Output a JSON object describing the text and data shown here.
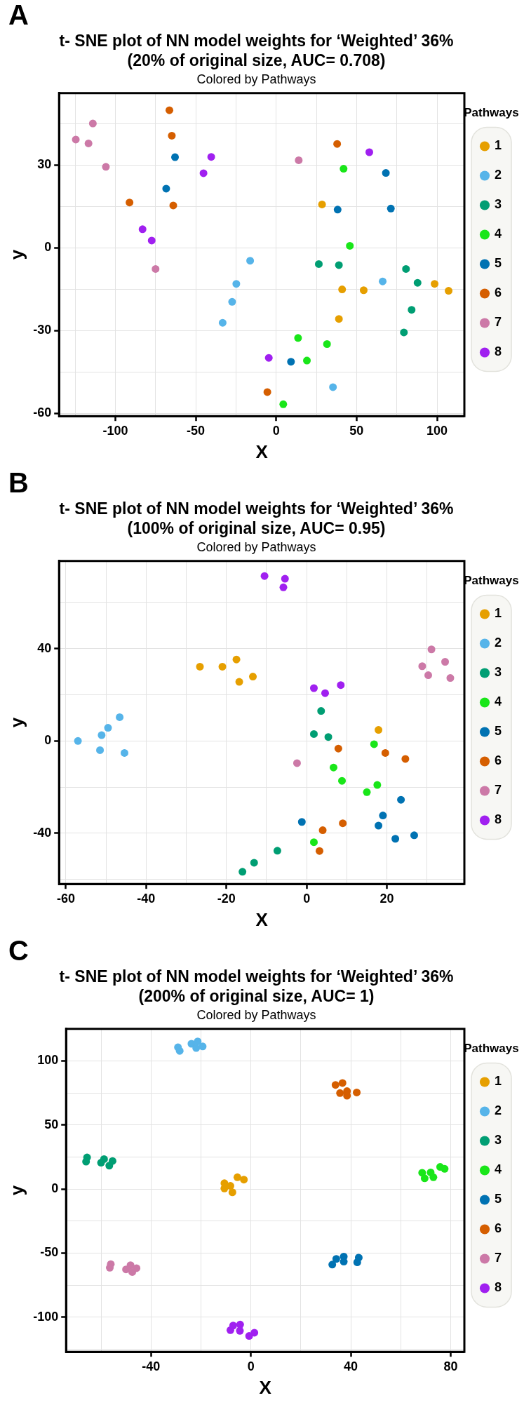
{
  "chart_data": [
    {
      "type": "scatter",
      "title": "t- SNE plot of NN model weights for ‘Weighted’ 36% (20% of original size, AUC= 0.708)",
      "subtitle": "Colored by Pathways",
      "xlabel": "X",
      "ylabel": "y",
      "legend_title": "Pathways",
      "annotations": [
        "A"
      ],
      "legend": "right",
      "grid": true,
      "marker": "circle",
      "xlim": [
        -135,
        117
      ],
      "ylim": [
        -61,
        56
      ],
      "xticks": [
        {
          "value": -125,
          "label": null
        },
        -100,
        {
          "value": -75,
          "label": null
        },
        -50,
        {
          "value": -25,
          "label": null
        },
        0,
        {
          "value": 25,
          "label": null
        },
        50,
        {
          "value": 75,
          "label": null
        },
        100
      ],
      "yticks": [
        -60,
        {
          "value": -45,
          "label": null
        },
        -30,
        {
          "value": -15,
          "label": null
        },
        0,
        {
          "value": 15,
          "label": null
        },
        30,
        {
          "value": 45,
          "label": null
        }
      ],
      "series": [
        {
          "name": "1",
          "color": "#e69f00",
          "x": [
            28.5,
            41,
            54.4,
            39,
            98.5,
            107.2
          ],
          "values": [
            15.7,
            -15.1,
            -15.4,
            -25.8,
            -13.1,
            -15.6
          ]
        },
        {
          "name": "2",
          "color": "#56b4e9",
          "x": [
            -16.2,
            -24.8,
            -27.4,
            -33.3,
            66.2,
            35.3
          ],
          "values": [
            -4.7,
            -13.1,
            -19.6,
            -27.2,
            -12.2,
            -50.5
          ]
        },
        {
          "name": "3",
          "color": "#009e73",
          "x": [
            26.5,
            39,
            80.7,
            87.9,
            84.2,
            79.4
          ],
          "values": [
            -5.9,
            -6.3,
            -7.7,
            -12.7,
            -22.5,
            -30.7
          ]
        },
        {
          "name": "4",
          "color": "#19e619",
          "x": [
            41.9,
            45.8,
            13.6,
            31.6,
            19.1,
            4.4
          ],
          "values": [
            28.6,
            0.7,
            -32.7,
            -34.9,
            -40.9,
            -56.7
          ]
        },
        {
          "name": "5",
          "color": "#0072b2",
          "x": [
            -62.9,
            -68.4,
            68.2,
            38.2,
            71.3,
            9.2
          ],
          "values": [
            32.8,
            21.4,
            27.1,
            13.8,
            14.2,
            -41.3
          ]
        },
        {
          "name": "6",
          "color": "#d55e00",
          "x": [
            -66.4,
            -64.9,
            -91.2,
            -64,
            37.9,
            -5.5
          ],
          "values": [
            49.8,
            40.6,
            16.4,
            15.3,
            37.6,
            -52.3
          ]
        },
        {
          "name": "7",
          "color": "#cc79a7",
          "x": [
            -124.6,
            -114,
            -116.7,
            -105.9,
            -75,
            14
          ],
          "values": [
            39.2,
            45,
            37.8,
            29.3,
            -7.7,
            31.7
          ]
        },
        {
          "name": "8",
          "color": "#a020f0",
          "x": [
            -40.4,
            -45.2,
            -83.1,
            -77.4,
            57.9,
            -4.6
          ],
          "values": [
            32.9,
            27,
            6.7,
            2.6,
            34.6,
            -39.9
          ]
        }
      ]
    },
    {
      "type": "scatter",
      "title": "t- SNE plot of NN model weights for ‘Weighted’ 36% (100% of original size, AUC= 0.95)",
      "subtitle": "Colored by Pathways",
      "xlabel": "X",
      "ylabel": "y",
      "legend_title": "Pathways",
      "annotations": [
        "B"
      ],
      "legend": "right",
      "grid": true,
      "marker": "circle",
      "xlim": [
        -61.7,
        39.3
      ],
      "ylim": [
        -62,
        78
      ],
      "xticks": [
        -60,
        {
          "value": -50,
          "label": null
        },
        -40,
        {
          "value": -30,
          "label": null
        },
        -20,
        {
          "value": -10,
          "label": null
        },
        0,
        {
          "value": 10,
          "label": null
        },
        20,
        {
          "value": 30,
          "label": null
        }
      ],
      "yticks": [
        {
          "value": -60,
          "label": null
        },
        -40,
        {
          "value": -20,
          "label": null
        },
        0,
        {
          "value": 20,
          "label": null
        },
        40,
        {
          "value": 60,
          "label": null
        }
      ],
      "series": [
        {
          "name": "1",
          "color": "#e69f00",
          "x": [
            -26.6,
            -21,
            -17.5,
            -16.8,
            -13.4,
            17.9
          ],
          "values": [
            32.2,
            32.2,
            35.3,
            25.6,
            27.9,
            4.8
          ]
        },
        {
          "name": "2",
          "color": "#56b4e9",
          "x": [
            -57,
            -51.1,
            -49.5,
            -46.6,
            -51.5,
            -45.4
          ],
          "values": [
            0,
            2.5,
            5.7,
            10.3,
            -4,
            -5.2
          ]
        },
        {
          "name": "3",
          "color": "#009e73",
          "x": [
            3.6,
            1.8,
            5.4,
            -7.3,
            -13.1,
            -16
          ],
          "values": [
            13,
            3,
            1.7,
            -47.6,
            -52.8,
            -56.7
          ]
        },
        {
          "name": "4",
          "color": "#19e619",
          "x": [
            6.7,
            8.8,
            16.8,
            17.6,
            15,
            1.8
          ],
          "values": [
            -11.5,
            -17.3,
            -1.4,
            -19.1,
            -22.2,
            -43.9
          ]
        },
        {
          "name": "5",
          "color": "#0072b2",
          "x": [
            -1.2,
            23.5,
            19,
            17.9,
            22.1,
            26.8
          ],
          "values": [
            -35.1,
            -25.5,
            -32.3,
            -36.7,
            -42.4,
            -40.9
          ]
        },
        {
          "name": "6",
          "color": "#d55e00",
          "x": [
            7.9,
            19.6,
            24.6,
            4,
            9,
            3.2
          ],
          "values": [
            -3.3,
            -5.2,
            -7.8,
            -38.7,
            -35.7,
            -47.7
          ]
        },
        {
          "name": "7",
          "color": "#cc79a7",
          "x": [
            -2.4,
            28.8,
            31.1,
            30.3,
            34.5,
            35.8
          ],
          "values": [
            -9.6,
            32.4,
            39.7,
            28.5,
            34.3,
            27.3
          ]
        },
        {
          "name": "8",
          "color": "#a020f0",
          "x": [
            -10.5,
            -5.4,
            -5.8,
            1.8,
            4.6,
            8.5
          ],
          "values": [
            71.5,
            70.3,
            66.6,
            22.9,
            20.7,
            24.2
          ]
        }
      ]
    },
    {
      "type": "scatter",
      "title": "t- SNE plot of NN model weights for ‘Weighted’ 36% (200% of original size, AUC= 1)",
      "subtitle": "Colored by Pathways",
      "xlabel": "X",
      "ylabel": "y",
      "legend_title": "Pathways",
      "annotations": [
        "C"
      ],
      "legend": "right",
      "grid": true,
      "marker": "circle",
      "xlim": [
        -74,
        85.5
      ],
      "ylim": [
        -127,
        125
      ],
      "xticks": [
        {
          "value": -60,
          "label": null
        },
        -40,
        {
          "value": -20,
          "label": null
        },
        0,
        {
          "value": 20,
          "label": null
        },
        40,
        {
          "value": 60,
          "label": null
        },
        80
      ],
      "yticks": [
        {
          "value": -125,
          "label": null
        },
        -100,
        {
          "value": -75,
          "label": null
        },
        -50,
        {
          "value": -25,
          "label": null
        },
        0,
        {
          "value": 25,
          "label": null
        },
        50,
        {
          "value": 75,
          "label": null
        },
        100,
        {
          "value": 125,
          "label": null
        }
      ],
      "series": [
        {
          "name": "1",
          "color": "#e69f00",
          "x": [
            -10.6,
            -10.6,
            -8.2,
            -7.4,
            -5.4,
            -2.8
          ],
          "values": [
            4.6,
            0.5,
            2.5,
            -2.5,
            9.2,
            7.4
          ]
        },
        {
          "name": "2",
          "color": "#56b4e9",
          "x": [
            -29.2,
            -28.5,
            -23.8,
            -21.3,
            -21.9,
            -19.3
          ],
          "values": [
            110.6,
            107.8,
            113.4,
            115.2,
            110.1,
            111.3
          ]
        },
        {
          "name": "3",
          "color": "#009e73",
          "x": [
            -65.6,
            -66,
            -58.8,
            -60,
            -55.4,
            -56.7
          ],
          "values": [
            24.7,
            21.4,
            23.4,
            20.6,
            21.9,
            18.3
          ]
        },
        {
          "name": "4",
          "color": "#19e619",
          "x": [
            68.6,
            69.6,
            72,
            73.1,
            75.8,
            77.6
          ],
          "values": [
            12.7,
            8.4,
            13,
            9.2,
            17.3,
            15.8
          ]
        },
        {
          "name": "5",
          "color": "#0072b2",
          "x": [
            32.6,
            34.2,
            37.2,
            37.2,
            43.2,
            42.6
          ],
          "values": [
            -58.9,
            -54.5,
            -52.7,
            -56.6,
            -53.5,
            -57.1
          ]
        },
        {
          "name": "6",
          "color": "#d55e00",
          "x": [
            33.9,
            36.7,
            35.7,
            38.5,
            38.5,
            42.4
          ],
          "values": [
            81.3,
            82.8,
            74.9,
            76.4,
            72.9,
            75.4
          ]
        },
        {
          "name": "7",
          "color": "#cc79a7",
          "x": [
            -56.1,
            -56.5,
            -50,
            -48.2,
            -47.5,
            -45.8
          ],
          "values": [
            -58.6,
            -61.4,
            -62.7,
            -59.4,
            -64.7,
            -61.7
          ]
        },
        {
          "name": "8",
          "color": "#a020f0",
          "x": [
            -8.2,
            -7.1,
            -4.3,
            -4.4,
            -0.7,
            1.4
          ],
          "values": [
            -110.1,
            -106.5,
            -105.7,
            -110.6,
            -114.6,
            -112.1
          ]
        }
      ]
    }
  ]
}
